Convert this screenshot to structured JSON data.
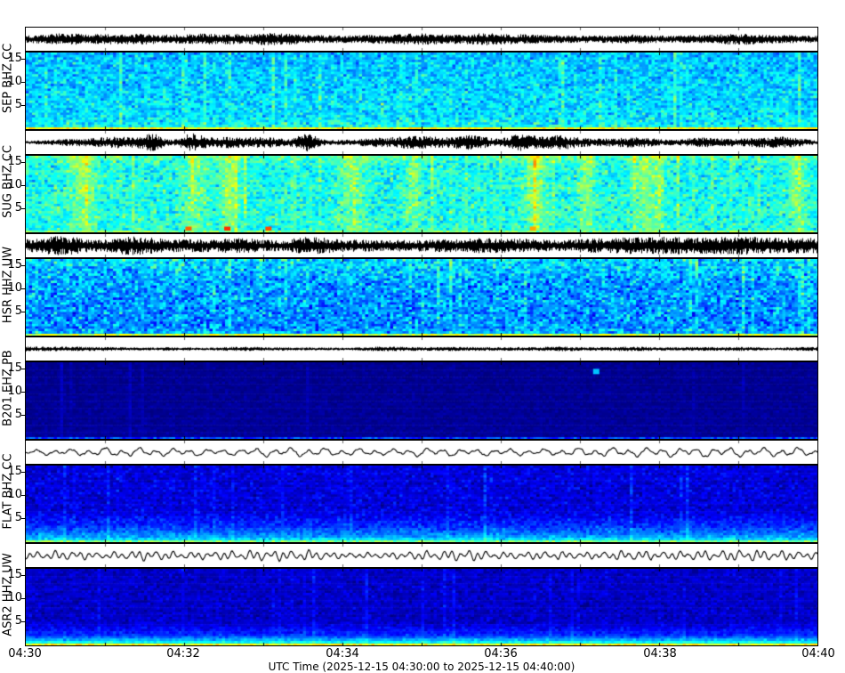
{
  "x_axis": {
    "label": "UTC Time (2025-12-15 04:30:00 to 2025-12-15 04:40:00)",
    "tick_labels": [
      "04:30",
      "04:32",
      "04:34",
      "04:36",
      "04:38",
      "04:40"
    ]
  },
  "freq_axis": {
    "tick_labels": [
      "15",
      "10",
      "5"
    ],
    "ticks_hz": [
      15,
      10,
      5
    ]
  },
  "chart_data": {
    "type": "heatmap",
    "xlabel": "UTC Time (2025-12-15 04:30:00 to 2025-12-15 04:40:00)",
    "x_ticks": [
      "04:30",
      "04:32",
      "04:34",
      "04:36",
      "04:38",
      "04:40"
    ],
    "time_start_utc": "2025-12-15 04:30:00",
    "time_end_utc": "2025-12-15 04:40:00",
    "y_ticks_hz": [
      5,
      10,
      15
    ],
    "freq_max_hz": 16.5,
    "colormap": "jet",
    "minor_tick_minutes": 1,
    "channels": [
      {
        "label": "SEP BHZ CC",
        "station": "SEP",
        "channel": "BHZ",
        "network": "CC",
        "waveform": {
          "style": "dense",
          "amp": 5.5,
          "seed": 101
        },
        "spectrogram": {
          "base": 0.33,
          "noise": 0.08,
          "seed": 11,
          "profile": [
            [
              0,
              -0.02
            ],
            [
              0.85,
              0.02
            ],
            [
              1,
              0.05
            ]
          ],
          "streaks": [],
          "random_streaks": 0.12,
          "streak_gain": 0.05,
          "spots": [],
          "bottom_line": 0.62
        }
      },
      {
        "label": "SUG BHZ CC",
        "station": "SUG",
        "channel": "BHZ",
        "network": "CC",
        "waveform": {
          "style": "bursty",
          "amp": 7,
          "base_amp": 0.12,
          "seed": 102,
          "bursts": [
            {
              "x": 0.055,
              "w": 0.03,
              "a": 0.35
            },
            {
              "x": 0.115,
              "w": 0.025,
              "a": 0.5
            },
            {
              "x": 0.16,
              "w": 0.012,
              "a": 0.75
            },
            {
              "x": 0.21,
              "w": 0.012,
              "a": 0.95
            },
            {
              "x": 0.25,
              "w": 0.02,
              "a": 0.5
            },
            {
              "x": 0.3,
              "w": 0.03,
              "a": 0.5
            },
            {
              "x": 0.355,
              "w": 0.01,
              "a": 1.05
            },
            {
              "x": 0.42,
              "w": 0.04,
              "a": 0.45
            },
            {
              "x": 0.5,
              "w": 0.04,
              "a": 0.55
            },
            {
              "x": 0.565,
              "w": 0.02,
              "a": 0.6
            },
            {
              "x": 0.625,
              "w": 0.015,
              "a": 0.95
            },
            {
              "x": 0.67,
              "w": 0.02,
              "a": 0.6
            },
            {
              "x": 0.72,
              "w": 0.03,
              "a": 0.5
            },
            {
              "x": 0.79,
              "w": 0.03,
              "a": 0.6
            },
            {
              "x": 0.855,
              "w": 0.02,
              "a": 0.55
            },
            {
              "x": 0.92,
              "w": 0.03,
              "a": 0.45
            },
            {
              "x": 0.97,
              "w": 0.02,
              "a": 0.5
            }
          ]
        },
        "spectrogram": {
          "base": 0.38,
          "noise": 0.08,
          "seed": 22,
          "profile": [
            [
              0,
              0.06
            ],
            [
              0.12,
              0.01
            ],
            [
              1,
              0.02
            ]
          ],
          "streaks": [
            {
              "x": 0.07,
              "w": 0.012,
              "a": 0.14
            },
            {
              "x": 0.21,
              "w": 0.01,
              "a": 0.12
            },
            {
              "x": 0.255,
              "w": 0.008,
              "a": 0.14
            },
            {
              "x": 0.41,
              "w": 0.012,
              "a": 0.12
            },
            {
              "x": 0.487,
              "w": 0.008,
              "a": 0.11
            },
            {
              "x": 0.64,
              "w": 0.01,
              "a": 0.14
            },
            {
              "x": 0.705,
              "w": 0.008,
              "a": 0.12
            },
            {
              "x": 0.78,
              "w": 0.012,
              "a": 0.13
            },
            {
              "x": 0.97,
              "w": 0.008,
              "a": 0.12
            }
          ],
          "random_streaks": 0.15,
          "streak_gain": 0.05,
          "spots": [
            {
              "x": 0.205,
              "y": 0.96,
              "a": 0.4
            },
            {
              "x": 0.254,
              "y": 0.96,
              "a": 0.45
            },
            {
              "x": 0.306,
              "y": 0.96,
              "a": 0.42
            },
            {
              "x": 0.64,
              "y": 0.96,
              "a": 0.33
            }
          ],
          "bottom_line": 0.5
        }
      },
      {
        "label": "HSR HHZ UW",
        "station": "HSR",
        "channel": "HHZ",
        "network": "UW",
        "waveform": {
          "style": "dense",
          "amp": 8.5,
          "seed": 103
        },
        "spectrogram": {
          "base": 0.28,
          "noise": 0.1,
          "seed": 33,
          "profile": [
            [
              0,
              0.06
            ],
            [
              0.3,
              0
            ],
            [
              0.9,
              -0.02
            ],
            [
              1,
              0.05
            ]
          ],
          "streaks": [],
          "random_streaks": 0.1,
          "streak_gain": 0.05,
          "spots": [],
          "bottom_line": 0.58
        }
      },
      {
        "label": "B201 EHZ PB",
        "station": "B201",
        "channel": "EHZ",
        "network": "PB",
        "waveform": {
          "style": "dense",
          "amp": 2.0,
          "seed": 104
        },
        "spectrogram": {
          "base": 0.015,
          "noise": 0.02,
          "seed": 44,
          "profile": [
            [
              0,
              0
            ],
            [
              1,
              0.01
            ]
          ],
          "streaks": [],
          "random_streaks": 0.05,
          "streak_gain": 0.02,
          "spots": [
            {
              "x": 0.72,
              "y": 0.12,
              "a": 0.3
            }
          ],
          "bottom_line": 0.18
        }
      },
      {
        "label": "FLAT BHZ CC",
        "station": "FLAT",
        "channel": "BHZ",
        "network": "CC",
        "waveform": {
          "style": "smooth",
          "amp": 5.0,
          "periods": [
            19,
            41
          ],
          "seed": 105
        },
        "spectrogram": {
          "base": 0.09,
          "noise": 0.05,
          "seed": 55,
          "profile": [
            [
              0,
              0
            ],
            [
              0.6,
              0
            ],
            [
              0.8,
              0.08
            ],
            [
              0.93,
              0.18
            ],
            [
              1,
              0.3
            ]
          ],
          "streaks": [],
          "random_streaks": 0.08,
          "streak_gain": 0.04,
          "spots": [],
          "bottom_line": 0.5
        }
      },
      {
        "label": "ASR2 HHZ UW",
        "station": "ASR2",
        "channel": "HHZ",
        "network": "UW",
        "waveform": {
          "style": "smooth",
          "amp": 6.0,
          "periods": [
            9.5,
            22
          ],
          "seed": 106
        },
        "spectrogram": {
          "base": 0.07,
          "noise": 0.04,
          "seed": 66,
          "profile": [
            [
              0,
              0
            ],
            [
              0.7,
              0
            ],
            [
              0.88,
              0.1
            ],
            [
              0.96,
              0.28
            ],
            [
              1,
              0.4
            ]
          ],
          "streaks": [],
          "random_streaks": 0.08,
          "streak_gain": 0.03,
          "spots": [],
          "bottom_line": 0.62
        }
      }
    ]
  }
}
